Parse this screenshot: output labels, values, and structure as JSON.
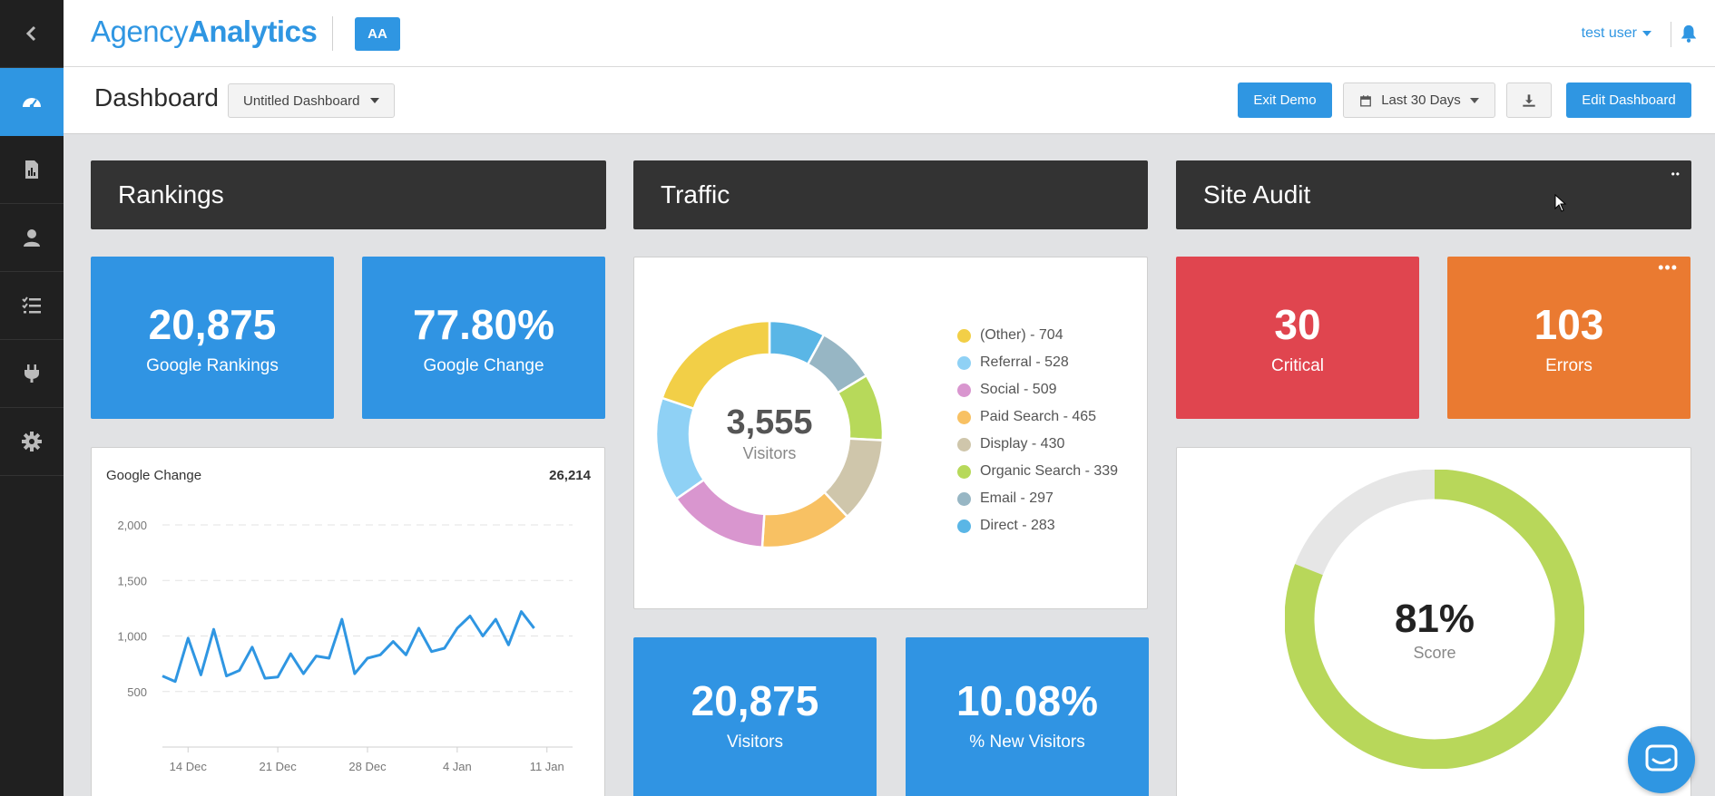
{
  "sidebar": {
    "items": [
      {
        "name": "collapse",
        "icon": "chevron-left-icon"
      },
      {
        "name": "dashboard",
        "icon": "speedometer-icon",
        "active": true
      },
      {
        "name": "reports",
        "icon": "report-icon"
      },
      {
        "name": "clients",
        "icon": "user-icon"
      },
      {
        "name": "tasks",
        "icon": "checklist-icon"
      },
      {
        "name": "integrations",
        "icon": "plug-icon"
      },
      {
        "name": "settings",
        "icon": "gear-icon"
      }
    ]
  },
  "topbar": {
    "logo_light": "Agency",
    "logo_bold": "Analytics",
    "badge": "AA",
    "user": "test user"
  },
  "header": {
    "title": "Dashboard",
    "dashboard_select": "Untitled Dashboard",
    "exit_demo": "Exit Demo",
    "date_range": "Last 30 Days",
    "edit_dashboard": "Edit Dashboard"
  },
  "sections": {
    "rankings": "Rankings",
    "traffic": "Traffic",
    "site_audit": "Site Audit"
  },
  "rankings": {
    "tile1": {
      "value": "20,875",
      "label": "Google Rankings"
    },
    "tile2": {
      "value": "77.80%",
      "label": "Google Change"
    },
    "chart_title": "Google Change",
    "chart_total": "26,214"
  },
  "traffic": {
    "center_value": "3,555",
    "center_label": "Visitors",
    "legend": [
      {
        "label": "(Other) - 704",
        "color": "#f2cf47"
      },
      {
        "label": "Referral - 528",
        "color": "#8fd1f5"
      },
      {
        "label": "Social - 509",
        "color": "#d996cf"
      },
      {
        "label": "Paid Search - 465",
        "color": "#f8c163"
      },
      {
        "label": "Display - 430",
        "color": "#cfc6ab"
      },
      {
        "label": "Organic Search - 339",
        "color": "#b7d95a"
      },
      {
        "label": "Email - 297",
        "color": "#97b6c4"
      },
      {
        "label": "Direct - 283",
        "color": "#5ab6e6"
      }
    ],
    "tile1": {
      "value": "20,875",
      "label": "Visitors"
    },
    "tile2": {
      "value": "10.08%",
      "label": "% New Visitors"
    }
  },
  "site_audit": {
    "critical": {
      "value": "30",
      "label": "Critical"
    },
    "errors": {
      "value": "103",
      "label": "Errors"
    },
    "score_value": "81%",
    "score_label": "Score",
    "score_fraction": 0.81
  },
  "chart_data": {
    "type": "line",
    "title": "Google Change",
    "x_ticks": [
      "14 Dec",
      "21 Dec",
      "28 Dec",
      "4 Jan",
      "11 Jan"
    ],
    "y_ticks": [
      "500",
      "1,000",
      "1,500",
      "2,000"
    ],
    "ylim": [
      0,
      2000
    ],
    "x": [
      "12 Dec",
      "13 Dec",
      "14 Dec",
      "15 Dec",
      "16 Dec",
      "17 Dec",
      "18 Dec",
      "19 Dec",
      "20 Dec",
      "21 Dec",
      "22 Dec",
      "23 Dec",
      "24 Dec",
      "25 Dec",
      "26 Dec",
      "27 Dec",
      "28 Dec",
      "29 Dec",
      "30 Dec",
      "31 Dec",
      "1 Jan",
      "2 Jan",
      "3 Jan",
      "4 Jan",
      "5 Jan",
      "6 Jan",
      "7 Jan",
      "8 Jan",
      "9 Jan",
      "10 Jan",
      "11 Jan",
      "12 Jan",
      "13 Jan"
    ],
    "values": [
      640,
      590,
      980,
      650,
      1060,
      640,
      690,
      900,
      620,
      630,
      840,
      660,
      820,
      800,
      1150,
      660,
      800,
      830,
      950,
      830,
      1070,
      860,
      890,
      1070,
      1180,
      1000,
      1150,
      920,
      1220,
      1070,
      null,
      null,
      null
    ],
    "grid": true
  }
}
